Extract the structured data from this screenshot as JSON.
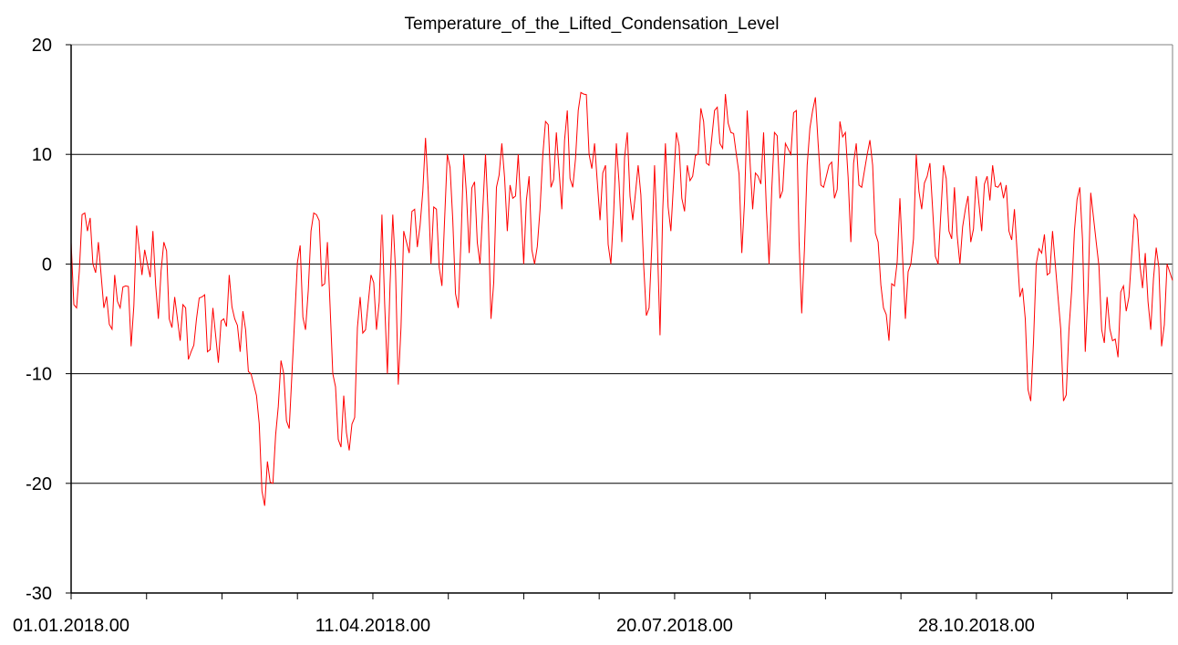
{
  "chart_data": {
    "type": "line",
    "title": "Temperature_of_the_Lifted_Condensation_Level",
    "xlabel": "",
    "ylabel": "",
    "ylim": [
      -30,
      20
    ],
    "yticks": [
      20,
      10,
      0,
      -10,
      -20,
      -30
    ],
    "ytick_labels": [
      "20",
      "10",
      "0",
      "-10",
      "-20",
      "-30"
    ],
    "x_range": [
      "01.01.2018",
      "01.01.2019"
    ],
    "xtick_labels": [
      "01.01.2018.00",
      "11.04.2018.00",
      "20.07.2018.00",
      "28.10.2018.00"
    ],
    "grid": true,
    "legend": "none",
    "series_color": "#ff0000",
    "grid_color": "#000000",
    "values": [
      2,
      -4,
      4.5,
      3,
      0,
      2,
      -4,
      -5.5,
      -1,
      -4,
      -2,
      -7.5,
      3.5,
      -1,
      0,
      3,
      -5,
      2,
      -5,
      -3,
      -7,
      -4,
      -8,
      -5,
      -3,
      -8,
      -4,
      -9,
      -5,
      -1,
      -5,
      -8,
      -6,
      -10,
      -12,
      -20.7,
      -18,
      -20,
      -13,
      -10,
      -15,
      -5,
      1.7,
      -6,
      3,
      4.5,
      -2,
      2,
      -10,
      -16,
      -12,
      -17,
      -14,
      -3,
      -6,
      -1,
      -6,
      4.5,
      -10,
      4.5,
      -11,
      3,
      1,
      5,
      3.5,
      11.5,
      0,
      5,
      -2,
      10,
      4,
      -4,
      10,
      1,
      7.5,
      0,
      10,
      -5,
      7,
      11,
      3,
      6,
      10,
      0,
      8,
      0,
      5,
      13,
      7,
      12,
      5,
      14,
      7,
      14,
      15.5,
      10,
      11,
      4,
      9,
      0,
      11,
      2,
      12,
      4,
      9,
      0,
      -4,
      9,
      -6.5,
      11,
      3,
      12,
      6,
      9,
      8,
      10,
      13,
      9,
      14,
      11,
      15.5,
      12,
      10,
      1,
      14,
      5,
      8,
      12,
      0,
      12,
      6,
      11,
      10,
      14,
      -4.5,
      9,
      14,
      11,
      7,
      9,
      6,
      13,
      12,
      2,
      11,
      7,
      10,
      9,
      2,
      -4,
      -7,
      -2,
      6,
      -5,
      0,
      10,
      5,
      8,
      5,
      0,
      9,
      3,
      7,
      0,
      5,
      2,
      8,
      3,
      8,
      9,
      7,
      6,
      3,
      5,
      -3,
      -5,
      -12.5,
      0,
      1,
      -1,
      3,
      -3,
      -12.5,
      -6,
      3,
      7,
      -8,
      6.5,
      2,
      -6,
      -3,
      -7,
      -8.5,
      -2,
      -3,
      4.5,
      0,
      1,
      -6,
      1.5,
      -7.5,
      0,
      -1.5
    ]
  }
}
